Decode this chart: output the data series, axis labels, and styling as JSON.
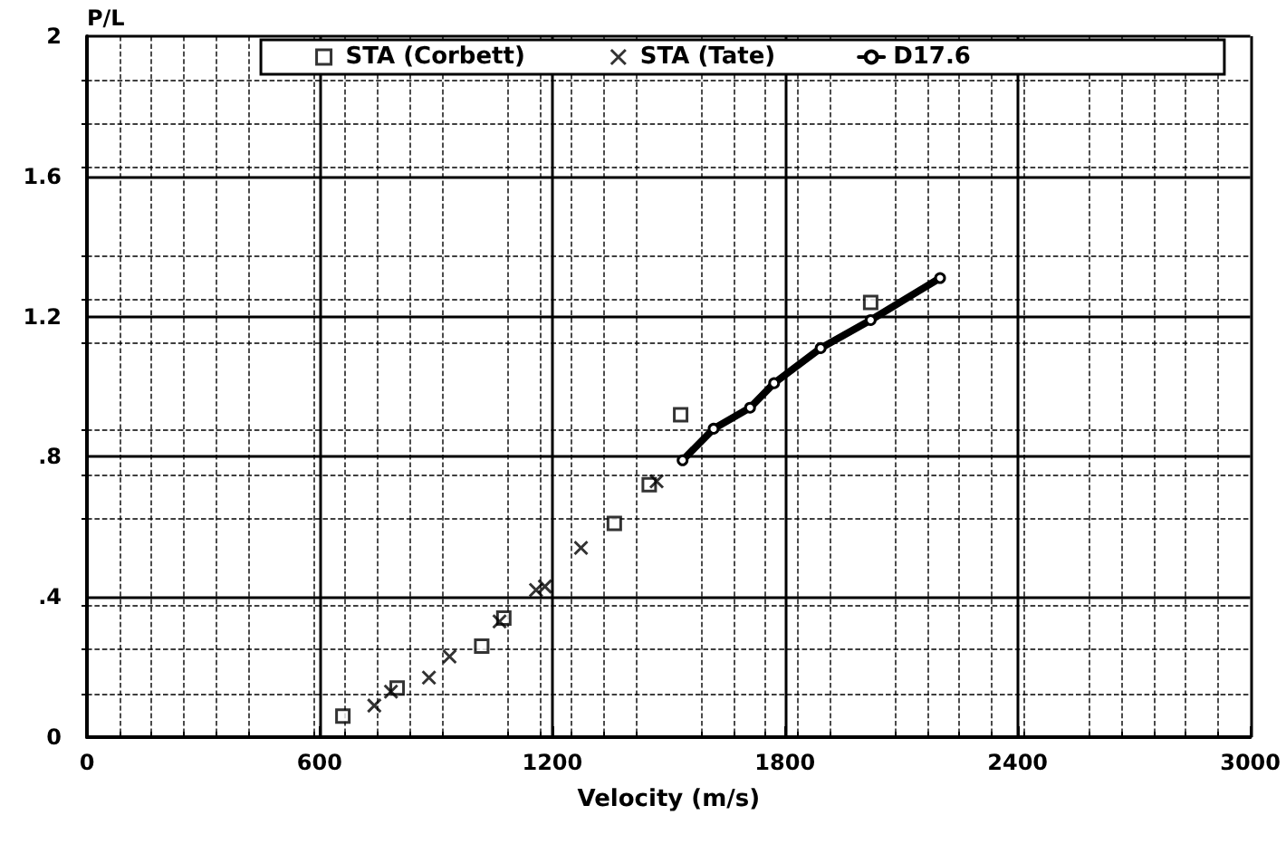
{
  "chart_data": {
    "type": "scatter",
    "xlabel": "Velocity (m/s)",
    "ylabel": "P/L",
    "xlim": [
      0,
      3000
    ],
    "xticks": [
      0,
      600,
      1200,
      1800,
      2400,
      3000
    ],
    "ylim": [
      0,
      2
    ],
    "yticks": [
      0,
      {
        "value": 0.4,
        "label": ".4"
      },
      {
        "value": 0.8,
        "label": ".8"
      },
      1.2,
      1.6,
      2
    ],
    "grid": true,
    "legend": "top",
    "series": [
      {
        "name": "STA (Corbett)",
        "type": "scatter",
        "marker": "square",
        "color": "#000000",
        "x": [
          660,
          800,
          1018,
          1075,
          1360,
          1450,
          1531,
          2021
        ],
        "values": [
          0.06,
          0.14,
          0.26,
          0.34,
          0.61,
          0.72,
          0.92,
          1.24
        ]
      },
      {
        "name": "STA (Tate)",
        "type": "scatter",
        "marker": "cross",
        "color": "#000000",
        "x": [
          741,
          784,
          882,
          935,
          1064,
          1158,
          1181,
          1274,
          1469
        ],
        "values": [
          0.09,
          0.13,
          0.17,
          0.23,
          0.33,
          0.42,
          0.43,
          0.54,
          0.73
        ]
      },
      {
        "name": "D17.6",
        "type": "line",
        "marker": "circle",
        "color": "#000000",
        "x": [
          1536,
          1616,
          1710,
          1772,
          1892,
          2021,
          2200
        ],
        "values": [
          0.79,
          0.88,
          0.94,
          1.01,
          1.11,
          1.19,
          1.31
        ]
      }
    ]
  }
}
